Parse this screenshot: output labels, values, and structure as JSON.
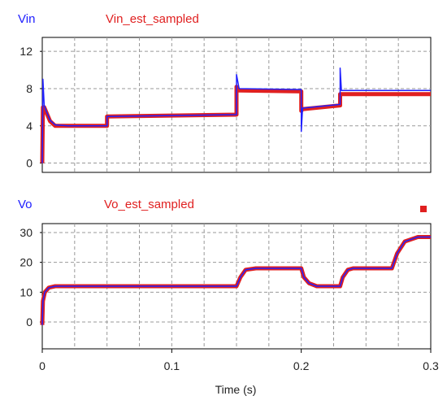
{
  "chart_data": [
    {
      "type": "line",
      "x_range": [
        0,
        0.3
      ],
      "ylim": [
        -1,
        13.5
      ],
      "y_ticks": [
        "0",
        "4",
        "8",
        "12"
      ],
      "grid": true,
      "legend": [
        "Vin",
        "Vin_est_sampled"
      ],
      "series": [
        {
          "name": "Vin",
          "color": "#2020ff",
          "x": [
            0,
            0.0005,
            0.0015,
            0.003,
            0.006,
            0.01,
            0.02,
            0.05,
            0.05,
            0.15,
            0.15,
            0.152,
            0.2,
            0.2,
            0.201,
            0.23,
            0.23,
            0.231,
            0.3
          ],
          "y": [
            0,
            9,
            6.2,
            5.6,
            4.6,
            4.1,
            4.0,
            4.0,
            5.0,
            5.2,
            9.5,
            8.0,
            7.9,
            3.4,
            5.9,
            6.3,
            10.2,
            7.8,
            7.8
          ]
        },
        {
          "name": "Vin_est_sampled",
          "color": "#e02020",
          "x": [
            0,
            0.0005,
            0.0015,
            0.003,
            0.006,
            0.01,
            0.02,
            0.05,
            0.05,
            0.15,
            0.15,
            0.152,
            0.2,
            0.2,
            0.201,
            0.23,
            0.23,
            0.231,
            0.3
          ],
          "y": [
            0,
            6.0,
            6.0,
            5.5,
            4.5,
            4.0,
            4.0,
            4.0,
            5.0,
            5.2,
            8.2,
            7.8,
            7.7,
            5.6,
            5.8,
            6.2,
            7.4,
            7.4,
            7.4
          ]
        }
      ]
    },
    {
      "type": "line",
      "x_range": [
        0,
        0.3
      ],
      "ylim": [
        -9,
        33
      ],
      "y_ticks": [
        "0",
        "10",
        "20",
        "30"
      ],
      "x_ticks": [
        "0",
        "0.1",
        "0.2",
        "0.3"
      ],
      "xlabel": "Time (s)",
      "grid": true,
      "legend": [
        "Vo",
        "Vo_est_sampled"
      ],
      "series": [
        {
          "name": "Vo",
          "color": "#2020ff",
          "x": [
            0,
            0.0005,
            0.002,
            0.005,
            0.01,
            0.15,
            0.153,
            0.157,
            0.165,
            0.2,
            0.202,
            0.206,
            0.212,
            0.23,
            0.232,
            0.236,
            0.24,
            0.27,
            0.274,
            0.28,
            0.29,
            0.3
          ],
          "y": [
            -1,
            7,
            10,
            11.5,
            12,
            12,
            15,
            17.5,
            18,
            18,
            15,
            13,
            12,
            12,
            15,
            17.5,
            18,
            18,
            23,
            27,
            28.5,
            28.5
          ]
        },
        {
          "name": "Vo_est_sampled",
          "color": "#e02020",
          "x": [
            0,
            0.0005,
            0.002,
            0.005,
            0.01,
            0.15,
            0.153,
            0.157,
            0.165,
            0.2,
            0.202,
            0.206,
            0.212,
            0.23,
            0.232,
            0.236,
            0.24,
            0.27,
            0.274,
            0.28,
            0.29,
            0.3
          ],
          "y": [
            -1,
            7,
            10,
            11.5,
            12,
            12,
            15,
            17.5,
            18,
            18,
            15,
            13,
            12,
            12,
            15,
            17.5,
            18,
            18,
            23,
            27,
            28.5,
            28.5
          ]
        }
      ]
    }
  ]
}
